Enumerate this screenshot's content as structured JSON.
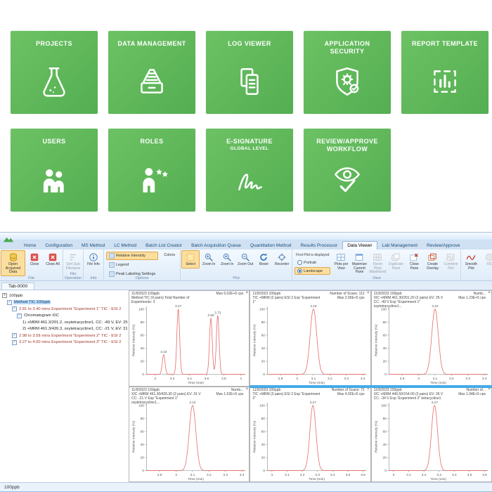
{
  "launcher": {
    "tile_color": "#5cb85c",
    "tiles": [
      {
        "id": "projects",
        "label": "PROJECTS",
        "icon": "flask-icon"
      },
      {
        "id": "data-management",
        "label": "DATA MANAGEMENT",
        "icon": "archive-icon"
      },
      {
        "id": "log-viewer",
        "label": "LOG VIEWER",
        "icon": "documents-icon"
      },
      {
        "id": "application-security",
        "label": "APPLICATION SECURITY",
        "icon": "shield-gear-icon"
      },
      {
        "id": "report-template",
        "label": "REPORT TEMPLATE",
        "icon": "report-chart-icon"
      },
      {
        "id": "users",
        "label": "USERS",
        "icon": "users-icon"
      },
      {
        "id": "roles",
        "label": "ROLES",
        "icon": "user-stars-icon"
      },
      {
        "id": "e-signature",
        "label": "E-SIGNATURE",
        "sublabel": "GLOBAL LEVEL",
        "icon": "signature-icon"
      },
      {
        "id": "review-approve-workflow",
        "label": "REVIEW/APPROVE WORKFLOW",
        "icon": "eye-check-icon"
      }
    ]
  },
  "app": {
    "tabs": [
      "Home",
      "Configuration",
      "MS Method",
      "LC Method",
      "Batch List Creator",
      "Batch Acquisition Queue",
      "Quantitation Method",
      "Results Processor",
      "Data Viewer",
      "Lab Management",
      "Review/Approve"
    ],
    "active_tab": "Data Viewer",
    "ribbon": {
      "groups": [
        {
          "name": "File",
          "type": "buttons",
          "buttons": [
            {
              "label": "Open Acquired Data",
              "icon": "database-icon",
              "state": "highlight",
              "wide": true
            },
            {
              "label": "Close",
              "icon": "close-icon"
            },
            {
              "label": "Close All",
              "icon": "close-icon"
            }
          ]
        },
        {
          "name": "File Operation",
          "type": "buttons",
          "buttons": [
            {
              "label": "Sort Sub Filename",
              "icon": "sort-icon",
              "state": "disabled"
            }
          ]
        },
        {
          "name": "Info",
          "type": "buttons",
          "buttons": [
            {
              "label": "File Info",
              "icon": "info-icon"
            }
          ]
        },
        {
          "name": "Options",
          "type": "stack",
          "items": [
            {
              "label": "Relative Intensity",
              "state": "highlight"
            },
            {
              "label": "Legend"
            },
            {
              "label": "Peak Labeling Settings"
            }
          ],
          "extra": [
            {
              "label": "Colors"
            }
          ]
        },
        {
          "name": "Plot",
          "type": "buttons",
          "buttons": [
            {
              "label": "Select",
              "icon": "select-icon",
              "state": "highlight"
            },
            {
              "label": "Zoom In",
              "icon": "zoom-in-icon"
            },
            {
              "label": "Zoom In",
              "icon": "zoom-in-icon"
            },
            {
              "label": "Zoom Out",
              "icon": "zoom-out-icon"
            },
            {
              "label": "Reset",
              "icon": "reset-icon"
            },
            {
              "label": "Recenter",
              "icon": "recenter-icon"
            }
          ]
        },
        {
          "name": "View",
          "type": "view",
          "caption": "First Plot is displayed",
          "radios": [
            {
              "label": "Portrait"
            },
            {
              "label": "Landscape",
              "state": "highlight"
            }
          ],
          "buttons": [
            {
              "label": "Plots per View",
              "icon": "plots-per-view-icon"
            },
            {
              "label": "Maximize Current Pane",
              "icon": "maximize-pane-icon"
            },
            {
              "label": "Reset Plots Maximized",
              "icon": "grid-panes-icon",
              "state": "disabled"
            },
            {
              "label": "Duplicate Pane",
              "icon": "duplicate-pane-icon",
              "state": "disabled"
            },
            {
              "label": "Close Pane",
              "icon": "close-pane-icon"
            },
            {
              "label": "Create Overlay",
              "icon": "create-overlay-icon"
            },
            {
              "label": "Combine Plot",
              "icon": "combine-plot-icon",
              "state": "disabled"
            }
          ]
        },
        {
          "name": "Analyze",
          "type": "buttons",
          "buttons": [
            {
              "label": "Smooth Plot",
              "icon": "smooth-icon"
            },
            {
              "label": "XIC",
              "icon": "disc-icon",
              "state": "disabled"
            },
            {
              "label": "Signal to Noise",
              "icon": "disc-icon",
              "state": "disabled"
            },
            {
              "label": "Average Calculator",
              "icon": "calculator-icon"
            }
          ]
        },
        {
          "name": "Printing",
          "type": "buttons",
          "buttons": [
            {
              "label": "Print",
              "icon": "printer-icon"
            },
            {
              "label": "Print Preview",
              "icon": "print-preview-icon"
            },
            {
              "label": "Print Report",
              "icon": "print-report-icon"
            }
          ]
        }
      ]
    },
    "document_tab": "Tab-0000",
    "tree": {
      "items": [
        {
          "indent": 0,
          "expander": "+",
          "label": "100ppb"
        },
        {
          "indent": 1,
          "checkbox": true,
          "label": "Method TIC 100ppb",
          "selected": true
        },
        {
          "indent": 2,
          "checkbox": true,
          "label": "2.81 to 3.40 mins Experiment \"Experiment 1\" TIC - ESI 2",
          "red": true
        },
        {
          "indent": 3,
          "checkbox": true,
          "label": "Chromatogram XIC"
        },
        {
          "indent": 4,
          "label": "1) +MRM 461.3/201.2, oxytetracycline1, CC: -49 V, EV: 25 V"
        },
        {
          "indent": 4,
          "label": "2) +MRM 461.3/426.3, oxytetracycline1, CC: -21 V, EV: 31 V"
        },
        {
          "indent": 2,
          "checkbox": true,
          "label": "2.98 to 3.58 mins Experiment \"Experiment 2\" TIC - ESI 2",
          "red": true
        },
        {
          "indent": 2,
          "checkbox": true,
          "label": "3.27 to 4.00 mins Experiment \"Experiment 3\" TIC - ESI 2",
          "red": true
        }
      ]
    },
    "panes": [
      {
        "title_line": "11/9/2023 100ppb",
        "desc_line": "Method TIC (9 pairs) Total Number of Experiments: 3",
        "info_line": "",
        "max_line": "Max 6.02E+5 cps"
      },
      {
        "title_line": "11/9/2023 100ppb",
        "desc_line": "TIC +MRM (2 pairs) ESI 2 Exp \"Experiment 1\"",
        "info_line": "Number of Scans: 112",
        "max_line": "Max 2.05E+5 cps"
      },
      {
        "title_line": "11/9/2023 100ppb",
        "desc_line": "XIC +MRM 461.30/201.20 (2 pairs) EV: 25 V CC: -49 V Exp \"Experiment 1\" oxytetracycline1...",
        "info_line": "Numb...",
        "max_line": "Max 1.23E+5 cps"
      },
      {
        "title_line": "11/9/2023 100ppb",
        "desc_line": "XIC +MRM 461.30/426.30 (2 pairs) EV: 31 V CC: -21 V Exp \"Experiment 1\" oxytetracycline1...",
        "info_line": "Numb...",
        "max_line": "Max 1.52E+5 cps"
      },
      {
        "title_line": "11/9/2023 100ppb",
        "desc_line": "TIC +MRM (3 pairs) ESI 2 Exp \"Experiment 2\"",
        "info_line": "Number of Scans: 72",
        "max_line": "Max 4.02E+5 cps"
      },
      {
        "title_line": "11/9/2023 100ppb",
        "desc_line": "XIC +MRM 446.50/154.00 (3 pairs) EV: 26 V CC: -34 V Exp \"Experiment 2\" tetracycline1",
        "info_line": "Number of...",
        "max_line": "Max 1.94E+5 cps"
      }
    ],
    "status_text": "100ppb"
  },
  "chart_data": [
    {
      "type": "line",
      "color": "#e66a6a",
      "xlabel": "Time (min)",
      "ylabel": "Relative Intensity (%)",
      "x_range": [
        2.9,
        4.05
      ],
      "x_ticks": [
        3,
        3.2,
        3.4,
        3.6,
        3.8,
        4
      ],
      "y_range": [
        0,
        104
      ],
      "y_ticks": [
        0,
        20,
        40,
        60,
        80,
        100
      ],
      "sigma": 0.016,
      "grid": false,
      "peaks": [
        {
          "x": 3.1,
          "y": 30,
          "label": "3.10"
        },
        {
          "x": 3.27,
          "y": 100,
          "label": "3.27"
        },
        {
          "x": 3.65,
          "y": 86,
          "label": "3.65"
        },
        {
          "x": 3.73,
          "y": 90,
          "label": "3.73"
        }
      ]
    },
    {
      "type": "line",
      "color": "#e66a6a",
      "xlabel": "Time (min)",
      "ylabel": "Relative Intensity (%)",
      "x_range": [
        2.82,
        3.42
      ],
      "x_ticks": [
        2.9,
        3,
        3.1,
        3.2,
        3.3,
        3.4
      ],
      "y_range": [
        0,
        104
      ],
      "y_ticks": [
        0,
        20,
        40,
        60,
        80,
        100
      ],
      "sigma": 0.02,
      "grid": false,
      "peaks": [
        {
          "x": 3.1,
          "y": 100,
          "label": "3.10"
        }
      ]
    },
    {
      "type": "line",
      "color": "#e66a6a",
      "xlabel": "Time (min)",
      "ylabel": "Relative Intensity (%)",
      "x_range": [
        2.82,
        3.42
      ],
      "x_ticks": [
        2.9,
        3,
        3.1,
        3.2,
        3.3,
        3.4
      ],
      "y_range": [
        0,
        104
      ],
      "y_ticks": [
        0,
        20,
        40,
        60,
        80,
        100
      ],
      "sigma": 0.02,
      "grid": false,
      "peaks": [
        {
          "x": 3.1,
          "y": 100,
          "label": "3.10"
        }
      ]
    },
    {
      "type": "line",
      "color": "#e66a6a",
      "xlabel": "Time (min)",
      "ylabel": "Relative Intensity (%)",
      "x_range": [
        2.82,
        3.42
      ],
      "x_ticks": [
        2.9,
        3,
        3.1,
        3.2,
        3.3,
        3.4
      ],
      "y_range": [
        0,
        104
      ],
      "y_ticks": [
        0,
        20,
        40,
        60,
        80,
        100
      ],
      "sigma": 0.02,
      "grid": false,
      "peaks": [
        {
          "x": 3.1,
          "y": 100,
          "label": "3.10"
        }
      ]
    },
    {
      "type": "line",
      "color": "#e66a6a",
      "xlabel": "Time (min)",
      "ylabel": "Relative Intensity (%)",
      "x_range": [
        2.97,
        3.62
      ],
      "x_ticks": [
        3,
        3.1,
        3.2,
        3.3,
        3.4,
        3.5,
        3.6
      ],
      "y_range": [
        0,
        104
      ],
      "y_ticks": [
        0,
        20,
        40,
        60,
        80,
        100
      ],
      "sigma": 0.02,
      "grid": false,
      "peaks": [
        {
          "x": 3.27,
          "y": 100,
          "label": "3.27"
        }
      ]
    },
    {
      "type": "line",
      "color": "#e66a6a",
      "xlabel": "Time (min)",
      "ylabel": "Relative Intensity (%)",
      "x_range": [
        2.97,
        3.62
      ],
      "x_ticks": [
        3,
        3.1,
        3.2,
        3.3,
        3.4,
        3.5,
        3.6
      ],
      "y_range": [
        0,
        104
      ],
      "y_ticks": [
        0,
        20,
        40,
        60,
        80,
        100
      ],
      "sigma": 0.02,
      "grid": false,
      "peaks": [
        {
          "x": 3.27,
          "y": 100,
          "label": "3.27"
        }
      ]
    }
  ]
}
